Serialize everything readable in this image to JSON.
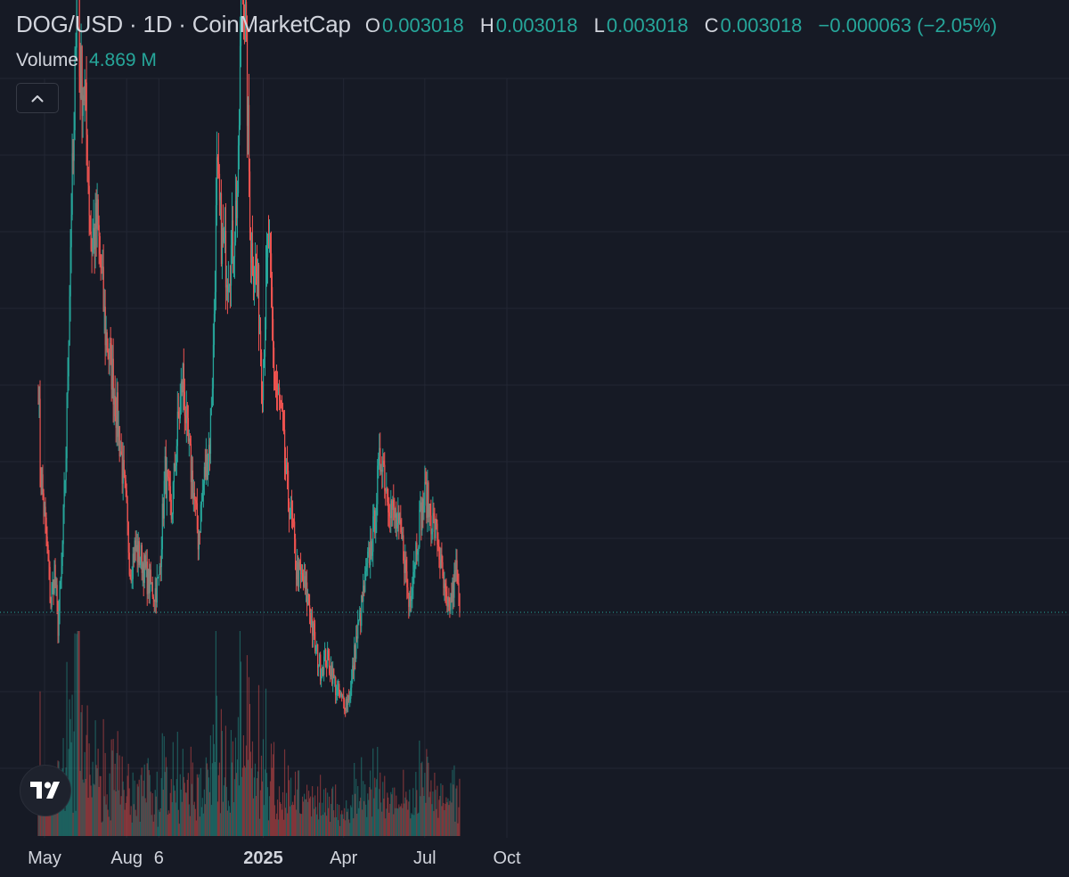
{
  "legend": {
    "symbol": "DOG/USD · 1D · CoinMarketCap",
    "open_label": "O",
    "open": "0.003018",
    "high_label": "H",
    "high": "0.003018",
    "low_label": "L",
    "low": "0.003018",
    "close_label": "C",
    "close": "0.003018",
    "change": "−0.000063 (−2.05%)"
  },
  "volume": {
    "label": "Volume",
    "value": "4.869 M"
  },
  "icons": {
    "collapse": "chevron-up-icon",
    "logo": "tradingview-logo-icon"
  },
  "colors": {
    "background": "#161a25",
    "up": "#26a69a",
    "down": "#ef5350",
    "grid": "#232734",
    "text": "#d1d4dc"
  },
  "chart_data": {
    "type": "candlestick",
    "interval": "1D",
    "x_axis_labels": [
      {
        "date": "2024-05-01",
        "label": "May"
      },
      {
        "date": "2024-08-01",
        "label": "Aug"
      },
      {
        "date": "2024-09-06",
        "label": "6"
      },
      {
        "date": "2025-01-01",
        "label": "2025",
        "bold": true
      },
      {
        "date": "2025-04-01",
        "label": "Apr"
      },
      {
        "date": "2025-07-01",
        "label": "Jul"
      },
      {
        "date": "2025-10-01",
        "label": "Oct"
      }
    ],
    "last_close": 0.003018,
    "grid": true,
    "price_path": [
      [
        "2024-04-24",
        0.0052
      ],
      [
        "2024-04-26",
        0.0044
      ],
      [
        "2024-05-03",
        0.0037
      ],
      [
        "2024-05-08",
        0.0031
      ],
      [
        "2024-05-12",
        0.0034
      ],
      [
        "2024-05-16",
        0.0029
      ],
      [
        "2024-05-20",
        0.0034
      ],
      [
        "2024-05-25",
        0.0045
      ],
      [
        "2024-05-31",
        0.0068
      ],
      [
        "2024-06-03",
        0.0073
      ],
      [
        "2024-06-07",
        0.0098
      ],
      [
        "2024-06-09",
        0.008
      ],
      [
        "2024-06-15",
        0.0078
      ],
      [
        "2024-06-22",
        0.0064
      ],
      [
        "2024-06-29",
        0.0066
      ],
      [
        "2024-07-03",
        0.0062
      ],
      [
        "2024-07-08",
        0.0056
      ],
      [
        "2024-07-16",
        0.0052
      ],
      [
        "2024-07-24",
        0.0046
      ],
      [
        "2024-07-31",
        0.004
      ],
      [
        "2024-08-05",
        0.0034
      ],
      [
        "2024-08-10",
        0.0036
      ],
      [
        "2024-08-18",
        0.0035
      ],
      [
        "2024-08-25",
        0.0033
      ],
      [
        "2024-09-01",
        0.0032
      ],
      [
        "2024-09-06",
        0.0033
      ],
      [
        "2024-09-13",
        0.0043
      ],
      [
        "2024-09-20",
        0.0039
      ],
      [
        "2024-09-27",
        0.0047
      ],
      [
        "2024-10-03",
        0.0052
      ],
      [
        "2024-10-08",
        0.0046
      ],
      [
        "2024-10-14",
        0.0042
      ],
      [
        "2024-10-20",
        0.0037
      ],
      [
        "2024-10-26",
        0.0042
      ],
      [
        "2024-11-02",
        0.0046
      ],
      [
        "2024-11-06",
        0.0054
      ],
      [
        "2024-11-10",
        0.007
      ],
      [
        "2024-11-16",
        0.0064
      ],
      [
        "2024-11-22",
        0.0062
      ],
      [
        "2024-11-28",
        0.0064
      ],
      [
        "2024-12-04",
        0.007
      ],
      [
        "2024-12-08",
        0.0092
      ],
      [
        "2024-12-12",
        0.0084
      ],
      [
        "2024-12-18",
        0.0064
      ],
      [
        "2024-12-25",
        0.0061
      ],
      [
        "2024-12-31",
        0.0052
      ],
      [
        "2025-01-07",
        0.0065
      ],
      [
        "2025-01-13",
        0.0052
      ],
      [
        "2025-01-20",
        0.0049
      ],
      [
        "2025-01-27",
        0.0042
      ],
      [
        "2025-02-03",
        0.0038
      ],
      [
        "2025-02-07",
        0.0034
      ],
      [
        "2025-02-14",
        0.0033
      ],
      [
        "2025-02-21",
        0.0031
      ],
      [
        "2025-02-28",
        0.0027
      ],
      [
        "2025-03-06",
        0.0025
      ],
      [
        "2025-03-12",
        0.0026
      ],
      [
        "2025-03-18",
        0.0025
      ],
      [
        "2025-03-24",
        0.0023
      ],
      [
        "2025-03-30",
        0.0022
      ],
      [
        "2025-04-04",
        0.0022
      ],
      [
        "2025-04-09",
        0.0023
      ],
      [
        "2025-04-14",
        0.0027
      ],
      [
        "2025-04-20",
        0.003
      ],
      [
        "2025-04-27",
        0.0034
      ],
      [
        "2025-05-05",
        0.0038
      ],
      [
        "2025-05-10",
        0.0043
      ],
      [
        "2025-05-14",
        0.0045
      ],
      [
        "2025-05-18",
        0.0042
      ],
      [
        "2025-05-24",
        0.004
      ],
      [
        "2025-05-31",
        0.0038
      ],
      [
        "2025-06-07",
        0.0036
      ],
      [
        "2025-06-13",
        0.0031
      ],
      [
        "2025-06-19",
        0.0035
      ],
      [
        "2025-06-26",
        0.0039
      ],
      [
        "2025-07-02",
        0.0041
      ],
      [
        "2025-07-08",
        0.0039
      ],
      [
        "2025-07-15",
        0.0037
      ],
      [
        "2025-07-21",
        0.0033
      ],
      [
        "2025-07-26",
        0.003
      ],
      [
        "2025-08-01",
        0.0032
      ],
      [
        "2025-08-05",
        0.0034
      ],
      [
        "2025-08-09",
        0.003
      ]
    ]
  }
}
